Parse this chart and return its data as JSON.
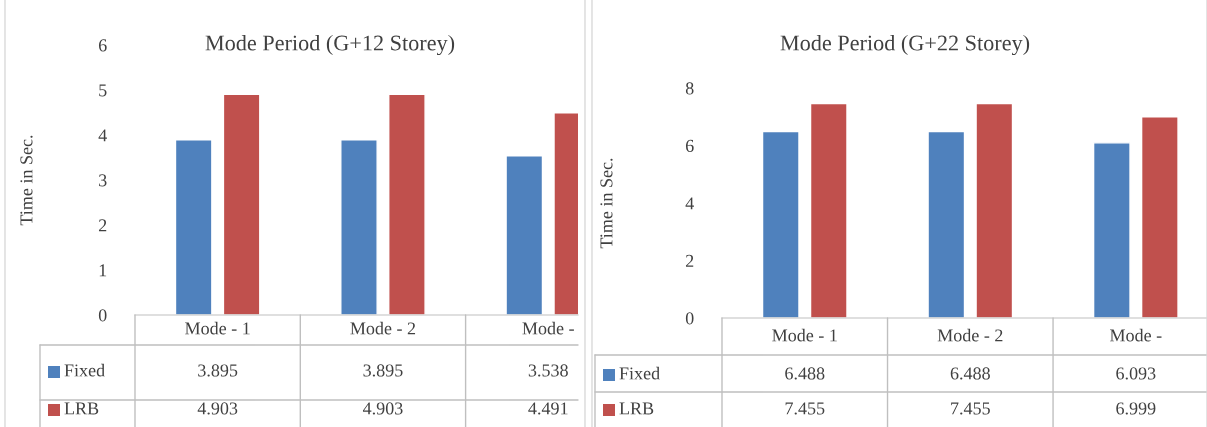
{
  "chart_data": [
    {
      "type": "bar",
      "title": "Mode Period (G+12 Storey)",
      "ylabel": "Time in Sec.",
      "categories": [
        "Mode - 1",
        "Mode - 2",
        "Mode -"
      ],
      "series": [
        {
          "name": "Fixed",
          "color": "#4f81bd",
          "values": [
            3.895,
            3.895,
            3.538
          ]
        },
        {
          "name": "LRB",
          "color": "#c0504d",
          "values": [
            4.903,
            4.903,
            4.491
          ]
        }
      ],
      "ylim": [
        0,
        6
      ],
      "yticks": [
        0,
        1,
        2,
        3,
        4,
        5,
        6
      ],
      "data_labels": true,
      "legend": "bottom",
      "grid": false
    },
    {
      "type": "bar",
      "title": "Mode Period (G+22 Storey)",
      "ylabel": "Time in Sec.",
      "categories": [
        "Mode - 1",
        "Mode - 2",
        "Mode -"
      ],
      "series": [
        {
          "name": "Fixed",
          "color": "#4f81bd",
          "values": [
            6.488,
            6.488,
            6.093
          ]
        },
        {
          "name": "LRB",
          "color": "#c0504d",
          "values": [
            7.455,
            7.455,
            6.999
          ]
        }
      ],
      "ylim": [
        0,
        8
      ],
      "yticks": [
        0,
        2,
        4,
        6,
        8
      ],
      "data_labels": true,
      "legend": "bottom",
      "grid": false
    }
  ]
}
